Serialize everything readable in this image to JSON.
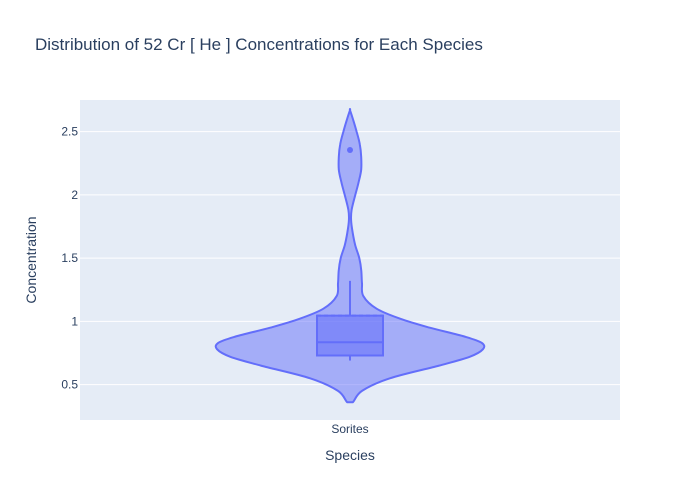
{
  "chart_data": {
    "type": "violin",
    "title": "Distribution of 52  Cr  [ He ]  Concentrations for Each Species",
    "xlabel": "Species",
    "ylabel": "Concentration",
    "categories": [
      "Sorites"
    ],
    "ylim": [
      0.22,
      2.75
    ],
    "yticks": [
      0.5,
      1,
      1.5,
      2,
      2.5
    ],
    "ytick_labels": [
      "0.5",
      "1",
      "1.5",
      "2",
      "2.5"
    ],
    "grid": true,
    "colors": {
      "background": "#e5ecf6",
      "violin_fill": "#636efa",
      "violin_line": "#636efa",
      "grid": "#ffffff"
    },
    "series": [
      {
        "category": "Sorites",
        "box": {
          "q1": 0.73,
          "median": 0.835,
          "q3": 1.045,
          "lower_fence": 0.69,
          "upper_fence": 1.32
        },
        "mean": 1.045,
        "outliers": [
          2.355
        ],
        "density": [
          [
            0.36,
            0.02
          ],
          [
            0.45,
            0.09
          ],
          [
            0.55,
            0.3
          ],
          [
            0.65,
            0.67
          ],
          [
            0.72,
            0.9
          ],
          [
            0.78,
            1.0
          ],
          [
            0.83,
            0.99
          ],
          [
            0.88,
            0.86
          ],
          [
            0.95,
            0.6
          ],
          [
            1.02,
            0.38
          ],
          [
            1.1,
            0.2
          ],
          [
            1.2,
            0.1
          ],
          [
            1.3,
            0.09
          ],
          [
            1.4,
            0.085
          ],
          [
            1.5,
            0.07
          ],
          [
            1.6,
            0.04
          ],
          [
            1.7,
            0.02
          ],
          [
            1.8,
            0.008
          ],
          [
            1.88,
            0.012
          ],
          [
            2.0,
            0.04
          ],
          [
            2.1,
            0.065
          ],
          [
            2.2,
            0.084
          ],
          [
            2.3,
            0.084
          ],
          [
            2.4,
            0.074
          ],
          [
            2.5,
            0.05
          ],
          [
            2.6,
            0.022
          ],
          [
            2.67,
            0.0
          ]
        ]
      }
    ]
  }
}
